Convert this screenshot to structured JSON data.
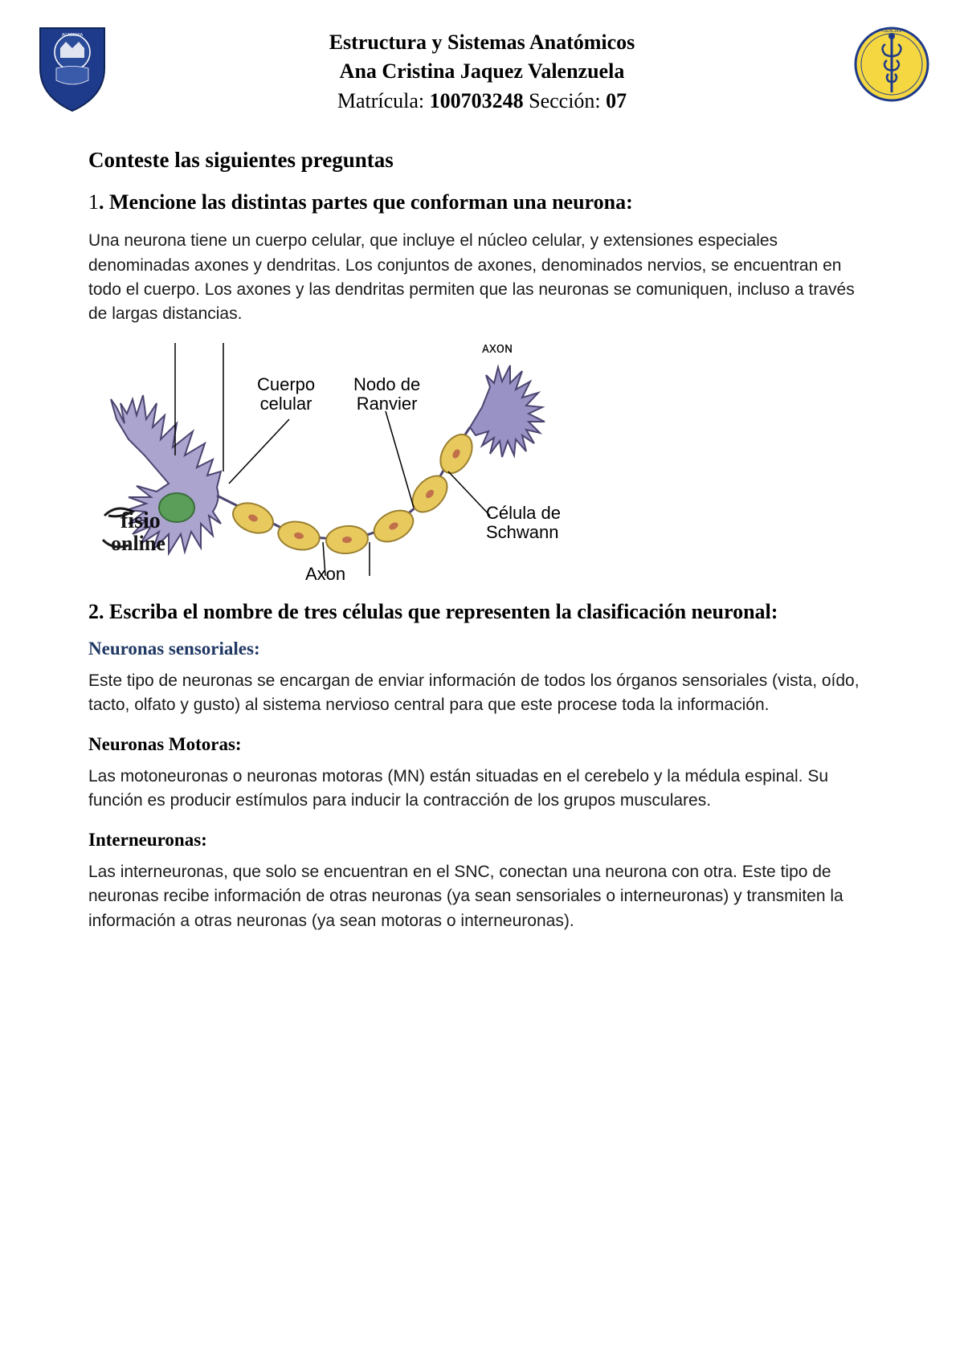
{
  "header": {
    "line1": "Estructura y Sistemas Anatómicos",
    "line2": "Ana Cristina Jaquez Valenzuela",
    "matricula_label": "Matrícula: ",
    "matricula_value": "100703248",
    "seccion_label": " Sección: ",
    "seccion_value": "07"
  },
  "logos": {
    "left": {
      "shield_fill": "#1e3a8a",
      "shield_stroke": "#0f2557",
      "inner_fill": "#ffffff"
    },
    "right": {
      "circle_fill": "#f5d742",
      "circle_stroke": "#1e3a8a",
      "symbol_fill": "#1e3a8a"
    }
  },
  "section_title": "Conteste las siguientes preguntas",
  "q1": {
    "number": "1",
    "title": ". Mencione las distintas partes que conforman una neurona:",
    "body": "Una neurona tiene un cuerpo celular, que incluye el núcleo celular, y extensiones especiales denominadas axones y dendritas. Los conjuntos de axones, denominados nervios, se encuentran en todo el cuerpo. Los axones y las dendritas permiten que las neuronas se comuniquen, incluso a través de largas distancias."
  },
  "diagram": {
    "labels": {
      "cuerpo_celular": "Cuerpo celular",
      "nodo_ranvier": "Nodo de Ranvier",
      "axon": "Axon",
      "celula_schwann": "Célula de Schwann",
      "watermark1": "fisio",
      "watermark2": "online"
    },
    "colors": {
      "soma_fill": "#aaa4ce",
      "soma_stroke": "#4b4570",
      "nucleus_fill": "#5a9e5a",
      "schwann_fill": "#e8c95e",
      "schwann_stroke": "#9a8030",
      "schwann_dot": "#c0704a",
      "line_color": "#000000",
      "terminal_fill": "#9992c4"
    }
  },
  "q2": {
    "title": "2. Escriba el nombre de tres células que representen la clasificación neuronal:",
    "items": [
      {
        "heading": "Neuronas sensoriales:",
        "heading_color": "#1f3864",
        "body": "Este tipo de neuronas se encargan de enviar información de todos los órganos sensoriales (vista, oído, tacto, olfato y gusto) al sistema nervioso central para que este procese toda la información."
      },
      {
        "heading": "Neuronas Motoras:",
        "heading_color": "#000000",
        "body": "Las motoneuronas o neuronas motoras (MN) están situadas en el cerebelo y la médula espinal. Su función es producir estímulos para inducir la contracción de los grupos musculares."
      },
      {
        "heading": "Interneuronas:",
        "heading_color": "#000000",
        "body": "Las interneuronas, que solo se encuentran en el SNC, conectan una neurona con otra. Este tipo de neuronas recibe información de otras neuronas (ya sean sensoriales o interneuronas) y transmiten la información a otras neuronas (ya sean motoras o interneuronas)."
      }
    ]
  }
}
